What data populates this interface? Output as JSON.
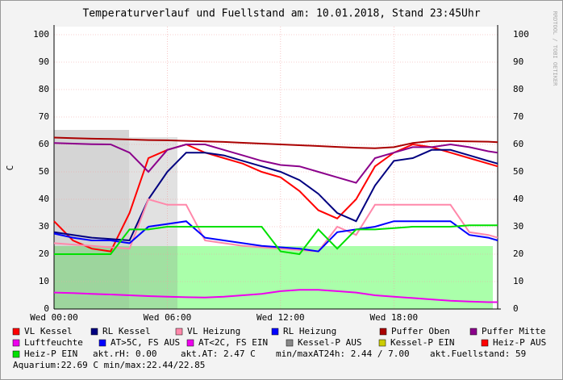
{
  "chart_data": {
    "type": "line",
    "title": "Temperaturverlauf und Fuellstand am: 10.01.2018, Stand 23:45Uhr",
    "y_label": "C",
    "watermark": "RRDTOOL / TOBI OETIKER",
    "x": [
      0,
      1,
      2,
      3,
      4,
      5,
      6,
      7,
      8,
      9,
      10,
      11,
      12,
      13,
      14,
      15,
      16,
      17,
      18,
      19,
      20,
      21,
      22,
      23,
      23.5
    ],
    "xlim": [
      0,
      23.5
    ],
    "xticks": [
      {
        "value": 0,
        "label": "Wed 00:00"
      },
      {
        "value": 6,
        "label": "Wed 06:00"
      },
      {
        "value": 12,
        "label": "Wed 12:00"
      },
      {
        "value": 18,
        "label": "Wed 18:00"
      }
    ],
    "ylim": [
      0,
      100
    ],
    "yticks": [
      0,
      10,
      20,
      30,
      40,
      50,
      60,
      70,
      80,
      90,
      100
    ],
    "grid": true,
    "series": [
      {
        "name": "VL Kessel",
        "color": "#ff0000",
        "values": [
          32,
          25,
          22,
          21,
          35,
          55,
          58,
          60,
          57,
          55,
          53,
          50,
          48,
          43,
          36,
          33,
          40,
          52,
          57,
          60,
          59,
          57,
          55,
          53,
          52
        ]
      },
      {
        "name": "RL Kessel",
        "color": "#000080",
        "values": [
          28,
          27,
          26,
          25.5,
          25,
          40,
          50,
          57,
          57,
          56,
          54,
          52,
          50,
          47,
          42,
          35,
          32,
          45,
          54,
          55,
          58,
          58,
          56,
          54,
          53
        ]
      },
      {
        "name": "VL Heizung",
        "color": "#ff88aa",
        "values": [
          24,
          23.5,
          23,
          22.5,
          22,
          40,
          38,
          38,
          25,
          24,
          23,
          22.5,
          22,
          21.5,
          21,
          30,
          27,
          38,
          38,
          38,
          38,
          38,
          28,
          27,
          26
        ]
      },
      {
        "name": "RL Heizung",
        "color": "#0000ff",
        "values": [
          27.5,
          26,
          25,
          25,
          24,
          30,
          31,
          32,
          26,
          25,
          24,
          23,
          22.5,
          22,
          21,
          28,
          29,
          30,
          32,
          32,
          32,
          32,
          27,
          26,
          25
        ]
      },
      {
        "name": "Puffer Oben",
        "color": "#aa0000",
        "values": [
          62.5,
          62.3,
          62.1,
          62,
          61.8,
          61.6,
          61.5,
          61.3,
          61.1,
          60.9,
          60.6,
          60.3,
          60,
          59.7,
          59.4,
          59.1,
          58.8,
          58.6,
          59,
          60.5,
          61.2,
          61.2,
          61.1,
          61,
          60.8
        ]
      },
      {
        "name": "Puffer Mitte",
        "color": "#8b008b",
        "values": [
          60.5,
          60.3,
          60.1,
          60,
          57,
          50,
          58,
          60,
          60,
          58,
          56,
          54,
          52.5,
          52,
          50,
          48,
          46,
          55,
          57,
          59,
          59,
          60,
          59,
          57.5,
          57
        ]
      },
      {
        "name": "Luftfeuchte",
        "color": "#ee00ee",
        "values": [
          6,
          5.8,
          5.5,
          5.3,
          5,
          4.7,
          4.5,
          4.3,
          4.2,
          4.5,
          5,
          5.5,
          6.5,
          7,
          7,
          6.5,
          6,
          5,
          4.5,
          4,
          3.5,
          3,
          2.7,
          2.5,
          2.5
        ]
      },
      {
        "name": "Heiz-P EIN",
        "color": "#00e000",
        "values": [
          20,
          20,
          20,
          20,
          29,
          29,
          30,
          30,
          30,
          30,
          30,
          30,
          21,
          20,
          29,
          22,
          29,
          29,
          29.5,
          30,
          30,
          30,
          30.5,
          30.5,
          30.5
        ]
      }
    ],
    "other_legend": [
      {
        "name": "AT>5C, FS AUS",
        "color": "#0000ff"
      },
      {
        "name": "AT<2C, FS EIN",
        "color": "#ee00ee"
      },
      {
        "name": "Kessel-P AUS",
        "color": "#888888"
      },
      {
        "name": "Kessel-P EIN",
        "color": "#cccc00"
      },
      {
        "name": "Heiz-P AUS",
        "color": "#ff0000"
      }
    ],
    "info": [
      "akt.rH: 0.00",
      "akt.AT: 2.47 C",
      "min/maxAT24h: 2.44 / 7.00",
      "akt.Fuellstand:   59",
      "Aquarium:22.69 C  min/max:22.44/22.85"
    ]
  }
}
